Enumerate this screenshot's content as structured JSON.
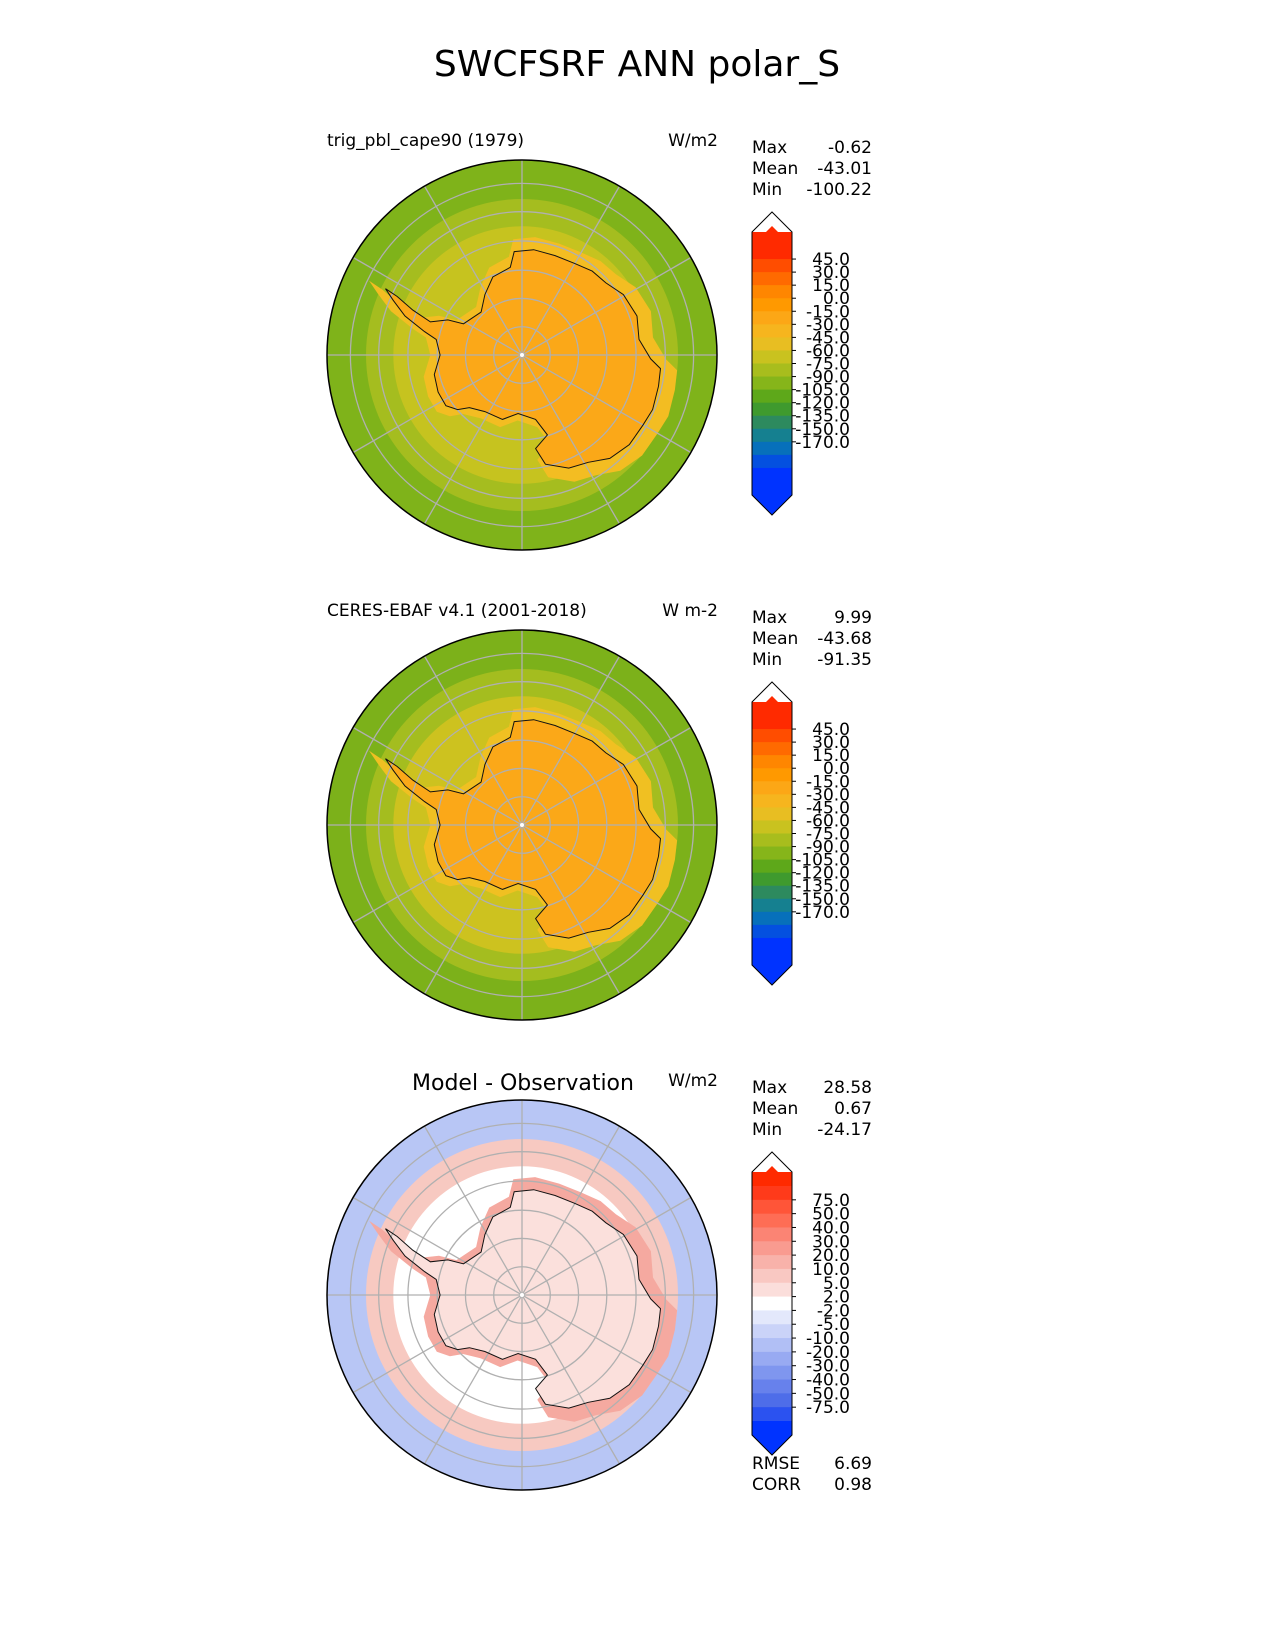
{
  "figure": {
    "title": "SWCFSRF ANN polar_S"
  },
  "colors": {
    "boundary": "#000000",
    "grid": "#b0b0b0",
    "coast": "#111111"
  },
  "panels": [
    {
      "id": "test",
      "title": "trig_pbl_cape90 (1979)",
      "title_style": "small",
      "units": "W/m2",
      "stats": [
        {
          "label": "Max",
          "value": "-0.62"
        },
        {
          "label": "Mean",
          "value": "-43.01"
        },
        {
          "label": "Min",
          "value": "-100.22"
        }
      ],
      "colorbar": {
        "ticks": [
          "45.0",
          "30.0",
          "15.0",
          "0.0",
          "-15.0",
          "-30.0",
          "-45.0",
          "-60.0",
          "-75.0",
          "-90.0",
          "-105.0",
          "-120.0",
          "-135.0",
          "-150.0",
          "-170.0"
        ],
        "colors": [
          "#ff2a00",
          "#ff4d00",
          "#ff6a00",
          "#ff8600",
          "#ff9900",
          "#fca716",
          "#f6b51e",
          "#e8be22",
          "#c9c21f",
          "#a8bd1d",
          "#86b51a",
          "#5ea81a",
          "#3f9a2e",
          "#2d8a5e",
          "#158090",
          "#0770bb",
          "#0450e0",
          "#0033ff"
        ],
        "extend_top": "#ff2a00",
        "extend_bottom": "#0033ff"
      },
      "map_field": {
        "ocean_outer": "#7fb31a",
        "ocean_mid": "#a5bd1f",
        "ocean_inner": "#c6c31f",
        "coastal": "#f3bd22",
        "continent": "#fba818"
      }
    },
    {
      "id": "reference",
      "title": "CERES-EBAF v4.1 (2001-2018)",
      "title_style": "small",
      "units": "W m-2",
      "stats": [
        {
          "label": "Max",
          "value": "9.99"
        },
        {
          "label": "Mean",
          "value": "-43.68"
        },
        {
          "label": "Min",
          "value": "-91.35"
        }
      ],
      "colorbar": {
        "ticks": [
          "45.0",
          "30.0",
          "15.0",
          "0.0",
          "-15.0",
          "-30.0",
          "-45.0",
          "-60.0",
          "-75.0",
          "-90.0",
          "-105.0",
          "-120.0",
          "-135.0",
          "-150.0",
          "-170.0"
        ],
        "colors": [
          "#ff2a00",
          "#ff4d00",
          "#ff6a00",
          "#ff8600",
          "#ff9900",
          "#fca716",
          "#f6b51e",
          "#e8be22",
          "#c9c21f",
          "#a8bd1d",
          "#86b51a",
          "#5ea81a",
          "#3f9a2e",
          "#2d8a5e",
          "#158090",
          "#0770bb",
          "#0450e0",
          "#0033ff"
        ],
        "extend_top": "#ff2a00",
        "extend_bottom": "#0033ff"
      },
      "map_field": {
        "ocean_outer": "#7cb11a",
        "ocean_mid": "#a4bd1f",
        "ocean_inner": "#cdc21f",
        "coastal": "#f0c022",
        "continent": "#fba818"
      }
    },
    {
      "id": "diff",
      "title": "Model - Observation",
      "title_style": "large",
      "units": "W/m2",
      "stats": [
        {
          "label": "Max",
          "value": "28.58"
        },
        {
          "label": "Mean",
          "value": "0.67"
        },
        {
          "label": "Min",
          "value": "-24.17"
        }
      ],
      "colorbar": {
        "ticks": [
          "75.0",
          "50.0",
          "40.0",
          "30.0",
          "20.0",
          "10.0",
          "5.0",
          "2.0",
          "-2.0",
          "-5.0",
          "-10.0",
          "-20.0",
          "-30.0",
          "-40.0",
          "-50.0",
          "-75.0"
        ],
        "colors": [
          "#ff3a1a",
          "#ff5538",
          "#fe6d55",
          "#fb8474",
          "#f99b90",
          "#f8b2aa",
          "#f9c8c2",
          "#fbdedb",
          "#ffffff",
          "#e3e8fb",
          "#cad3f8",
          "#b1bff5",
          "#98aaf2",
          "#7f96ef",
          "#6781ec",
          "#4e6de9",
          "#2b52f0"
        ],
        "extend_top": "#ff2a00",
        "extend_bottom": "#0033ff"
      },
      "metrics": [
        {
          "label": "RMSE",
          "value": "6.69"
        },
        {
          "label": "CORR",
          "value": "0.98"
        }
      ],
      "map_field": {
        "ocean_outer": "#b8c6f5",
        "ocean_mid": "#f7c9c1",
        "ocean_inner": "#ffffff",
        "coastal": "#f5a9a0",
        "continent": "#fbe0dc"
      }
    }
  ]
}
